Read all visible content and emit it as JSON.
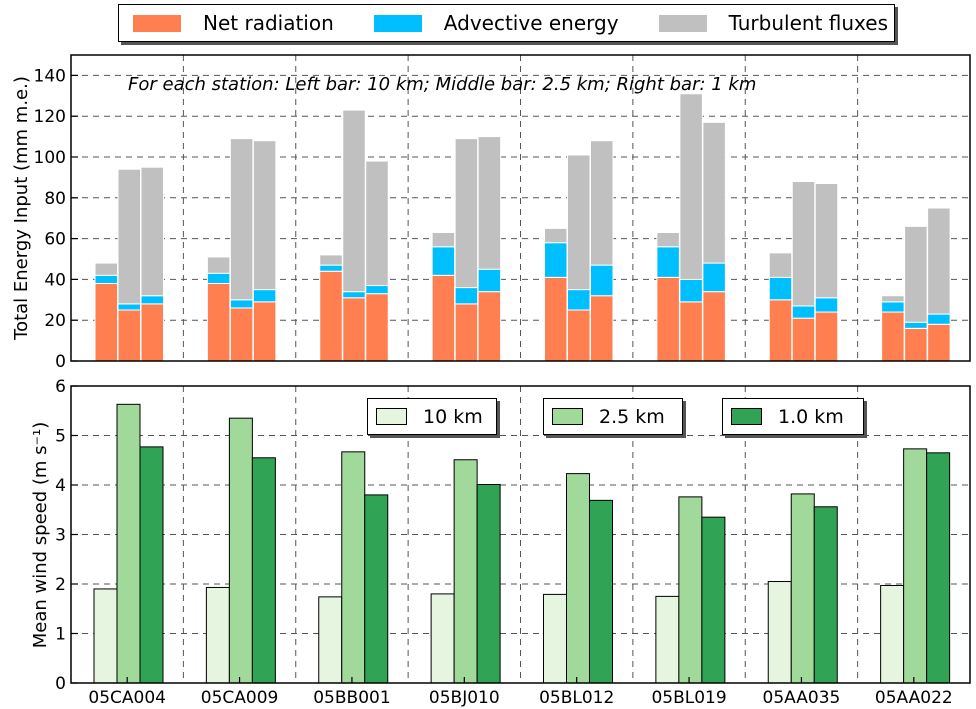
{
  "chart_data": [
    {
      "type": "bar",
      "stacked": true,
      "note": "For each station: Left bar: 10 km; Middle bar: 2.5 km; Right bar: 1 km",
      "ylabel": "Total Energy Input (mm m.e.)",
      "ylim": [
        0,
        150
      ],
      "yticks": [
        "0",
        "20",
        "40",
        "60",
        "80",
        "100",
        "120",
        "140"
      ],
      "grid": true,
      "legend_placement": "top-center",
      "categories": [
        "05CA004",
        "05CA009",
        "05BB001",
        "05BJ010",
        "05BL012",
        "05BL019",
        "05AA035",
        "05AA022"
      ],
      "resolutions": [
        "10 km",
        "2.5 km",
        "1 km"
      ],
      "series": [
        {
          "name": "Net radiation",
          "color": "#ff7f50",
          "values": [
            [
              38,
              25,
              28
            ],
            [
              38,
              26,
              29
            ],
            [
              44,
              31,
              33
            ],
            [
              42,
              28,
              34
            ],
            [
              41,
              25,
              32
            ],
            [
              41,
              29,
              34
            ],
            [
              30,
              21,
              24
            ],
            [
              24,
              16,
              18
            ]
          ]
        },
        {
          "name": "Advective energy",
          "color": "#00bfff",
          "values": [
            [
              4,
              3,
              4
            ],
            [
              5,
              4,
              6
            ],
            [
              3,
              3,
              4
            ],
            [
              14,
              8,
              11
            ],
            [
              17,
              10,
              15
            ],
            [
              15,
              11,
              14
            ],
            [
              11,
              6,
              7
            ],
            [
              5,
              3,
              5
            ]
          ]
        },
        {
          "name": "Turbulent fluxes",
          "color": "#c0c0c0",
          "values": [
            [
              6,
              66,
              63
            ],
            [
              8,
              79,
              73
            ],
            [
              5,
              89,
              61
            ],
            [
              7,
              73,
              65
            ],
            [
              7,
              66,
              61
            ],
            [
              7,
              91,
              69
            ],
            [
              12,
              61,
              56
            ],
            [
              3,
              47,
              52
            ]
          ]
        }
      ]
    },
    {
      "type": "bar",
      "ylabel": "Mean wind speed (m s⁻¹)",
      "ylim": [
        0,
        6
      ],
      "yticks": [
        "0",
        "1",
        "2",
        "3",
        "4",
        "5",
        "6"
      ],
      "grid": true,
      "legend_placement": "top-right",
      "categories": [
        "05CA004",
        "05CA009",
        "05BB001",
        "05BJ010",
        "05BL012",
        "05BL019",
        "05AA035",
        "05AA022"
      ],
      "series": [
        {
          "name": "10 km",
          "color": "#e5f5e0",
          "values": [
            1.9,
            1.93,
            1.74,
            1.8,
            1.79,
            1.75,
            2.05,
            1.97
          ]
        },
        {
          "name": "2.5 km",
          "color": "#a1d99b",
          "values": [
            5.63,
            5.35,
            4.67,
            4.51,
            4.23,
            3.76,
            3.82,
            4.73
          ]
        },
        {
          "name": "1.0 km",
          "color": "#31a354",
          "values": [
            4.77,
            4.55,
            3.8,
            4.01,
            3.69,
            3.35,
            3.56,
            4.65
          ]
        }
      ]
    }
  ]
}
